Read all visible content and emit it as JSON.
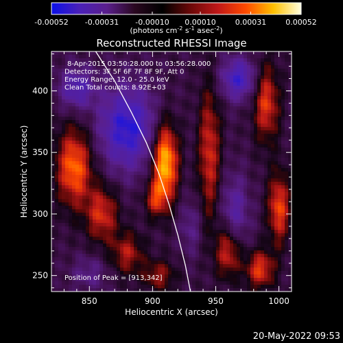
{
  "colorbar": {
    "tick_labels": [
      "-0.00052",
      "-0.00031",
      "-0.00010",
      "0.00010",
      "0.00031",
      "0.00052"
    ],
    "units": "(photons cm",
    "units_exp1": "-2",
    "units_mid": " s",
    "units_exp2": "-1",
    "units_end": " asec",
    "units_exp3": "-2",
    "units_close": ")",
    "stops": [
      "#0b10e8",
      "#4a20b8",
      "#5a1f8c",
      "#2a0820",
      "#000000",
      "#6a0808",
      "#c01818",
      "#ff4a00",
      "#ffc000",
      "#ffffe0"
    ]
  },
  "chart_data": {
    "type": "heatmap",
    "title": "Reconstructed RHESSI Image",
    "xlabel": "Heliocentric X (arcsec)",
    "ylabel": "Heliocentric Y (arcsec)",
    "xlim": [
      820,
      1010
    ],
    "ylim": [
      237,
      432
    ],
    "xticks": [
      850,
      900,
      950,
      1000
    ],
    "yticks": [
      250,
      300,
      350,
      400
    ],
    "value_range": [
      -0.00052,
      0.00052
    ],
    "annotations": [
      "8-Apr-2015 03:50:28.000 to 03:56:28.000",
      "Detectors: 3F 5F 6F 7F 8F 9F, Att 0",
      "Energy Range: 12.0 - 25.0 keV",
      "Clean     Total counts: 8.92E+03"
    ],
    "peak_label": "Position of Peak = [913,342]",
    "peak": [
      913,
      342
    ],
    "limb_points": [
      [
        855,
        432
      ],
      [
        870,
        408
      ],
      [
        883,
        383
      ],
      [
        895,
        358
      ],
      [
        905,
        333
      ],
      [
        913,
        308
      ],
      [
        920,
        283
      ],
      [
        926,
        258
      ],
      [
        930,
        237
      ]
    ],
    "sources": [
      {
        "x": 910,
        "y": 342,
        "sx": 7,
        "sy": 22,
        "amp": 1.0
      },
      {
        "x": 902,
        "y": 312,
        "sx": 6,
        "sy": 10,
        "amp": 0.45
      },
      {
        "x": 838,
        "y": 338,
        "sx": 10,
        "sy": 22,
        "amp": 0.75
      },
      {
        "x": 860,
        "y": 300,
        "sx": 9,
        "sy": 16,
        "amp": 0.55
      },
      {
        "x": 880,
        "y": 268,
        "sx": 9,
        "sy": 12,
        "amp": 0.45
      },
      {
        "x": 945,
        "y": 350,
        "sx": 6,
        "sy": 38,
        "amp": 0.55
      },
      {
        "x": 960,
        "y": 270,
        "sx": 7,
        "sy": 15,
        "amp": 0.6
      },
      {
        "x": 990,
        "y": 390,
        "sx": 7,
        "sy": 22,
        "amp": 0.6
      },
      {
        "x": 1000,
        "y": 305,
        "sx": 6,
        "sy": 20,
        "amp": 0.65
      },
      {
        "x": 985,
        "y": 255,
        "sx": 8,
        "sy": 11,
        "amp": 0.6
      },
      {
        "x": 905,
        "y": 250,
        "sx": 9,
        "sy": 9,
        "amp": 0.4
      },
      {
        "x": 880,
        "y": 370,
        "sx": 16,
        "sy": 24,
        "amp": -0.7
      },
      {
        "x": 840,
        "y": 402,
        "sx": 10,
        "sy": 12,
        "amp": -0.5
      },
      {
        "x": 968,
        "y": 410,
        "sx": 10,
        "sy": 12,
        "amp": -0.6
      },
      {
        "x": 965,
        "y": 300,
        "sx": 8,
        "sy": 22,
        "amp": -0.4
      },
      {
        "x": 930,
        "y": 290,
        "sx": 6,
        "sy": 16,
        "amp": -0.25
      },
      {
        "x": 850,
        "y": 252,
        "sx": 10,
        "sy": 10,
        "amp": -0.25
      }
    ]
  },
  "footer": {
    "timestamp": "20-May-2022 09:53"
  }
}
